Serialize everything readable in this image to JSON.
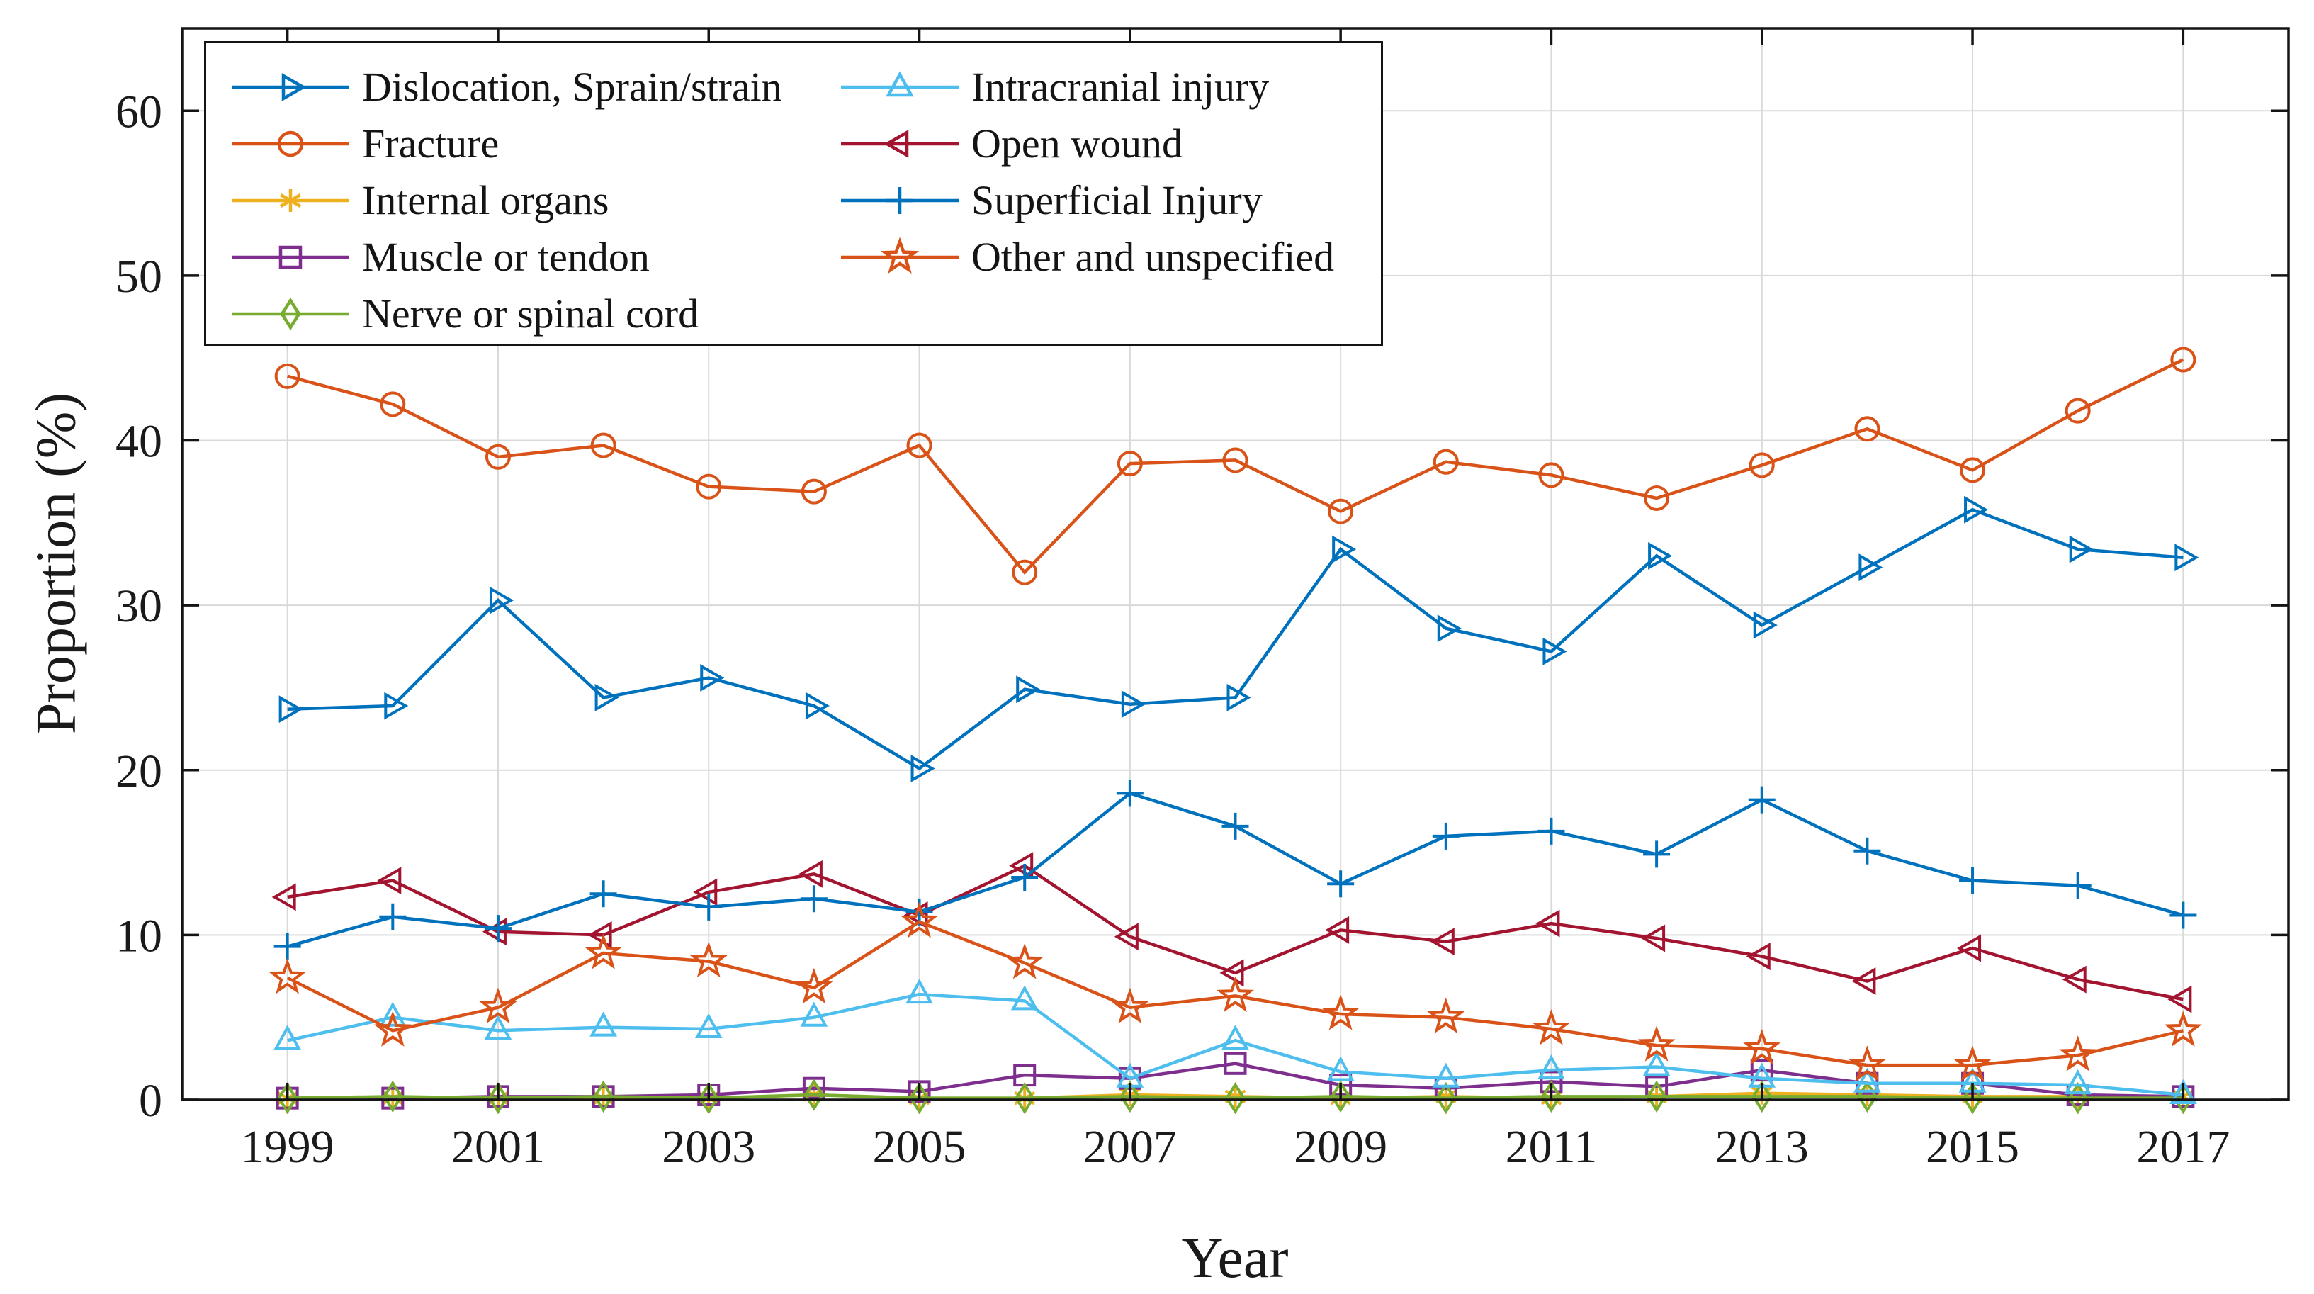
{
  "figure": {
    "title": "",
    "x_axis_label": "Year",
    "y_axis_label": "Proportion (%)"
  },
  "chart_data": {
    "type": "line",
    "title": "",
    "xlabel": "Year",
    "ylabel": "Proportion (%)",
    "xlim": [
      1998,
      2018
    ],
    "ylim": [
      0,
      65
    ],
    "x_ticks": [
      1999,
      2001,
      2003,
      2005,
      2007,
      2009,
      2011,
      2013,
      2015,
      2017
    ],
    "y_ticks": [
      0,
      10,
      20,
      30,
      40,
      50,
      60
    ],
    "grid": true,
    "legend_position": "top-left",
    "grid_color": "#d9d9d9",
    "axis_color": "#141414",
    "x": [
      1999,
      2000,
      2001,
      2002,
      2003,
      2004,
      2005,
      2006,
      2007,
      2008,
      2009,
      2010,
      2011,
      2012,
      2013,
      2014,
      2015,
      2016,
      2017
    ],
    "series": [
      {
        "name": "Dislocation, Sprain/strain",
        "marker": ">",
        "color": "#0072BD",
        "values": [
          23.7,
          23.9,
          30.3,
          24.4,
          25.6,
          23.9,
          20.1,
          24.9,
          24.0,
          24.4,
          33.4,
          28.6,
          27.2,
          33.0,
          28.8,
          32.3,
          35.8,
          33.4,
          32.9
        ]
      },
      {
        "name": "Fracture",
        "marker": "o",
        "color": "#D95319",
        "values": [
          43.9,
          42.2,
          39.0,
          39.7,
          37.2,
          36.9,
          39.7,
          32.0,
          38.6,
          38.8,
          35.7,
          38.7,
          37.9,
          36.5,
          38.5,
          40.7,
          38.2,
          41.8,
          44.9
        ]
      },
      {
        "name": "Internal organs",
        "marker": "*",
        "color": "#EDB120",
        "values": [
          0.1,
          0.1,
          0.1,
          0.1,
          0.1,
          0.3,
          0.1,
          0.1,
          0.3,
          0.2,
          0.1,
          0.2,
          0.1,
          0.2,
          0.4,
          0.3,
          0.2,
          0.2,
          0.2
        ]
      },
      {
        "name": "Muscle or tendon",
        "marker": "s",
        "color": "#7E2F8E",
        "values": [
          0.1,
          0.1,
          0.2,
          0.2,
          0.3,
          0.7,
          0.5,
          1.5,
          1.3,
          2.2,
          0.9,
          0.7,
          1.1,
          0.8,
          1.8,
          1.0,
          1.0,
          0.3,
          0.2
        ]
      },
      {
        "name": "Nerve or spinal cord",
        "marker": "d",
        "color": "#77AC30",
        "values": [
          0.1,
          0.2,
          0.1,
          0.2,
          0.1,
          0.3,
          0.1,
          0.1,
          0.2,
          0.1,
          0.2,
          0.1,
          0.2,
          0.2,
          0.2,
          0.2,
          0.1,
          0.1,
          0.1
        ]
      },
      {
        "name": "Intracranial injury",
        "marker": "^",
        "color": "#4DBEEE",
        "values": [
          3.6,
          5.0,
          4.2,
          4.4,
          4.3,
          5.0,
          6.4,
          6.0,
          1.3,
          3.6,
          1.7,
          1.3,
          1.8,
          2.0,
          1.3,
          1.0,
          1.0,
          0.9,
          0.3
        ]
      },
      {
        "name": "Open wound",
        "marker": "<",
        "color": "#A2142F",
        "values": [
          12.3,
          13.3,
          10.2,
          10.0,
          12.6,
          13.7,
          11.2,
          14.2,
          9.9,
          7.7,
          10.3,
          9.6,
          10.7,
          9.8,
          8.7,
          7.2,
          9.2,
          7.3,
          6.1
        ]
      },
      {
        "name": "Superficial Injury",
        "marker": "+",
        "color": "#0072BD",
        "values": [
          9.3,
          11.1,
          10.4,
          12.5,
          11.7,
          12.2,
          11.4,
          13.5,
          18.6,
          16.6,
          13.1,
          16.0,
          16.3,
          14.9,
          18.2,
          15.1,
          13.3,
          13.0,
          11.2
        ]
      },
      {
        "name": "Other and unspecified",
        "marker": "p",
        "color": "#D95319",
        "values": [
          7.4,
          4.2,
          5.6,
          8.9,
          8.4,
          6.8,
          10.8,
          8.3,
          5.6,
          6.3,
          5.2,
          5.0,
          4.3,
          3.3,
          3.1,
          2.1,
          2.1,
          2.7,
          4.2
        ]
      }
    ]
  }
}
